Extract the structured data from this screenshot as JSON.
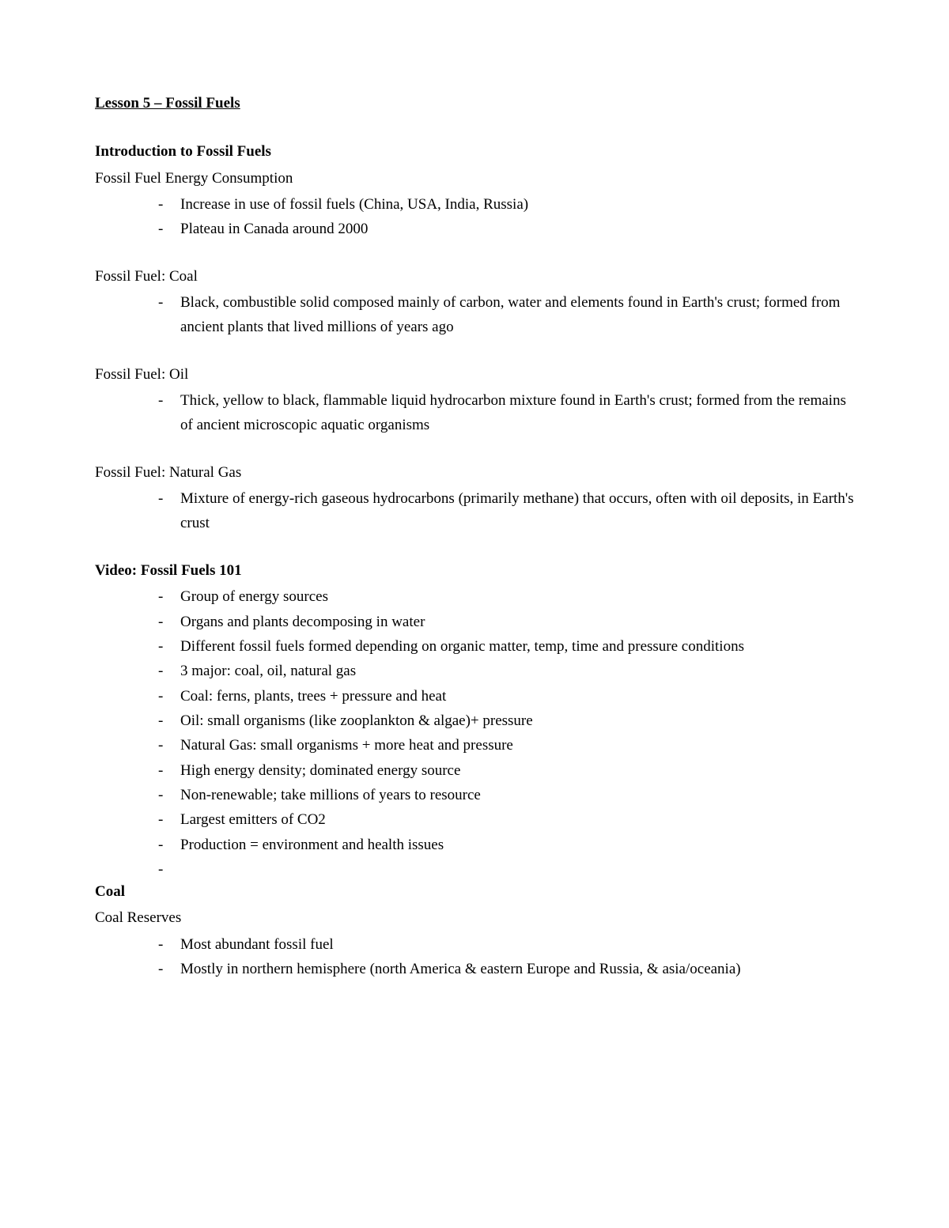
{
  "lesson_title": "Lesson 5 – Fossil Fuels",
  "sections": {
    "intro": {
      "heading": "Introduction to Fossil Fuels",
      "consumption": {
        "title": "Fossil Fuel Energy Consumption",
        "items": [
          "Increase in use of fossil fuels (China, USA, India, Russia)",
          "Plateau in Canada around 2000"
        ]
      },
      "coal": {
        "title": "Fossil Fuel: Coal",
        "items": [
          "Black, combustible solid composed mainly of carbon, water and elements found in Earth's crust; formed from ancient plants that lived millions of years ago"
        ]
      },
      "oil": {
        "title": "Fossil Fuel: Oil",
        "items": [
          "Thick, yellow to black, flammable liquid hydrocarbon mixture found in Earth's crust; formed from the remains of ancient microscopic aquatic organisms"
        ]
      },
      "gas": {
        "title": "Fossil Fuel: Natural Gas",
        "items": [
          "Mixture of energy-rich gaseous hydrocarbons (primarily methane) that occurs, often with oil deposits, in Earth's crust"
        ]
      }
    },
    "video": {
      "heading": "Video: Fossil Fuels 101",
      "items": [
        "Group of energy sources",
        "Organs and plants decomposing in water",
        "Different fossil fuels formed depending on organic matter, temp, time and pressure conditions",
        "3 major: coal, oil, natural gas",
        "Coal: ferns, plants, trees + pressure and heat",
        "Oil: small organisms (like zooplankton & algae)+ pressure",
        "Natural Gas: small organisms + more heat and pressure",
        "High energy density; dominated energy source",
        "Non-renewable; take millions of years to resource",
        "Largest emitters of CO2",
        "Production = environment and health issues",
        ""
      ]
    },
    "coal": {
      "heading": "Coal",
      "reserves": {
        "title": "Coal Reserves",
        "items": [
          "Most abundant fossil fuel",
          "Mostly in northern hemisphere (north America & eastern Europe and Russia, & asia/oceania)"
        ]
      }
    }
  }
}
